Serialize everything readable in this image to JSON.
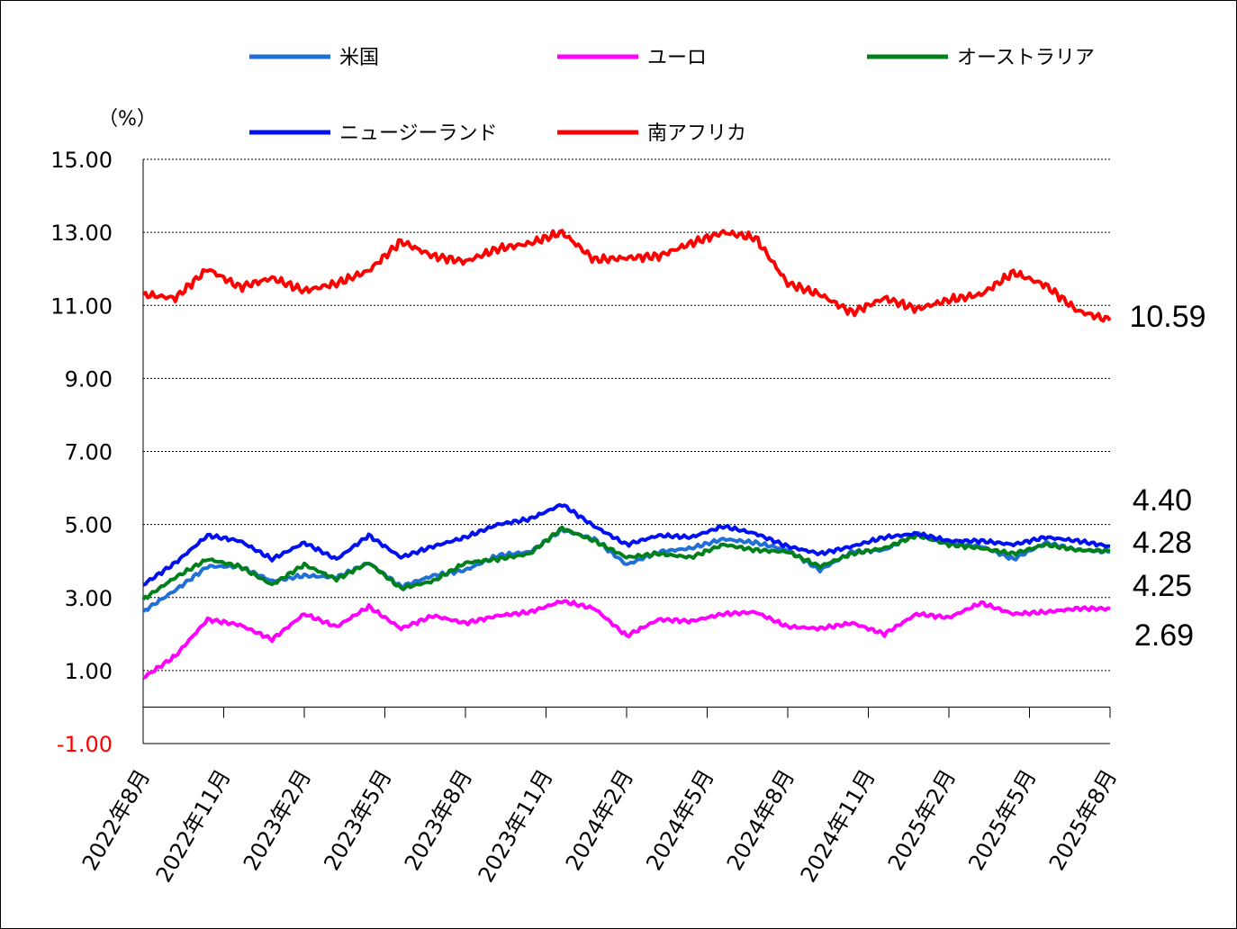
{
  "chart_data": {
    "type": "line",
    "y_unit": "（%）",
    "ylim": [
      -1,
      15
    ],
    "yticks": [
      15,
      13,
      11,
      9,
      7,
      5,
      3,
      1,
      -1
    ],
    "ytick_labels": [
      "15.00",
      "13.00",
      "11.00",
      "9.00",
      "7.00",
      "5.00",
      "3.00",
      "1.00",
      "-1.00"
    ],
    "negative_tick_color": "#ff0000",
    "grid": "horizontal dotted",
    "legend_position": "top",
    "x_tick_labels": [
      "2022年8月",
      "2022年11月",
      "2023年2月",
      "2023年5月",
      "2023年8月",
      "2023年11月",
      "2024年2月",
      "2024年5月",
      "2024年8月",
      "2024年11月",
      "2025年2月",
      "2025年5月",
      "2025年8月"
    ],
    "series": [
      {
        "name": "米国",
        "color": "#1f6fd6",
        "values": [
          2.62,
          3.2,
          3.85,
          3.85,
          3.45,
          3.6,
          3.55,
          3.95,
          3.3,
          3.6,
          3.75,
          4.15,
          4.25,
          4.85,
          4.6,
          3.9,
          4.25,
          4.35,
          4.6,
          4.5,
          4.3,
          3.75,
          4.25,
          4.3,
          4.75,
          4.5,
          4.4,
          4.05,
          4.5,
          4.3,
          4.25
        ]
      },
      {
        "name": "ユーロ",
        "color": "#ff00ff",
        "values": [
          0.8,
          1.4,
          2.4,
          2.25,
          1.85,
          2.55,
          2.2,
          2.75,
          2.15,
          2.5,
          2.3,
          2.5,
          2.6,
          2.9,
          2.7,
          1.95,
          2.4,
          2.35,
          2.55,
          2.6,
          2.2,
          2.15,
          2.3,
          2.0,
          2.55,
          2.45,
          2.85,
          2.55,
          2.6,
          2.7,
          2.69
        ]
      },
      {
        "name": "オーストラリア",
        "color": "#00801a",
        "values": [
          2.95,
          3.55,
          4.05,
          3.85,
          3.35,
          3.9,
          3.5,
          3.95,
          3.25,
          3.45,
          3.95,
          4.05,
          4.2,
          4.9,
          4.55,
          4.1,
          4.2,
          4.1,
          4.45,
          4.3,
          4.25,
          3.85,
          4.2,
          4.35,
          4.7,
          4.45,
          4.35,
          4.2,
          4.45,
          4.3,
          4.28
        ]
      },
      {
        "name": "ニュージーランド",
        "color": "#0010f0",
        "values": [
          3.35,
          3.95,
          4.7,
          4.55,
          4.05,
          4.5,
          4.05,
          4.7,
          4.1,
          4.4,
          4.65,
          5.0,
          5.15,
          5.55,
          4.95,
          4.45,
          4.7,
          4.65,
          4.95,
          4.75,
          4.4,
          4.2,
          4.4,
          4.65,
          4.75,
          4.55,
          4.55,
          4.45,
          4.65,
          4.55,
          4.4
        ]
      },
      {
        "name": "南アフリカ",
        "color": "#ff0000",
        "values": [
          11.3,
          11.2,
          12.0,
          11.5,
          11.75,
          11.4,
          11.6,
          11.95,
          12.75,
          12.35,
          12.2,
          12.55,
          12.7,
          13.0,
          12.25,
          12.3,
          12.35,
          12.7,
          13.0,
          12.85,
          11.6,
          11.3,
          10.8,
          11.2,
          10.9,
          11.15,
          11.3,
          11.9,
          11.55,
          10.85,
          10.59
        ]
      }
    ],
    "end_labels": [
      "10.59",
      "4.40",
      "4.28",
      "4.25",
      "2.69"
    ]
  }
}
